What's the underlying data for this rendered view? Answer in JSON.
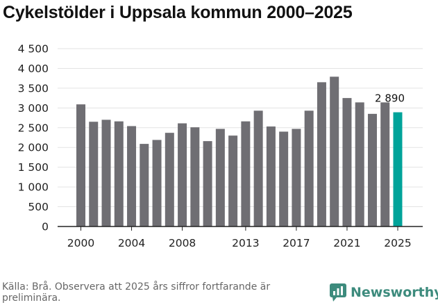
{
  "title": "Cykelstölder i Uppsala kommun 2000–2025",
  "source": "Källa: Brå. Observera att 2025 års siffror fortfarande är preliminära.",
  "brand": "Newsworthy",
  "colors": {
    "bar": "#6f6e73",
    "highlight": "#00a39a",
    "brand": "#3d8b7d"
  },
  "chart_data": {
    "type": "bar",
    "title": "Cykelstölder i Uppsala kommun 2000–2025",
    "xlabel": "",
    "ylabel": "",
    "ylim": [
      0,
      4500
    ],
    "y_ticks": [
      0,
      500,
      1000,
      1500,
      2000,
      2500,
      3000,
      3500,
      4000,
      4500
    ],
    "y_tick_labels": [
      "0",
      "500",
      "1 000",
      "1 500",
      "2 000",
      "2 500",
      "3 000",
      "3 500",
      "4 000",
      "4 500"
    ],
    "x_tick_labels": [
      2000,
      2004,
      2008,
      2013,
      2017,
      2021,
      2025
    ],
    "grid": true,
    "categories": [
      2000,
      2001,
      2002,
      2003,
      2004,
      2005,
      2006,
      2007,
      2008,
      2009,
      2010,
      2011,
      2012,
      2013,
      2014,
      2015,
      2016,
      2017,
      2018,
      2019,
      2020,
      2021,
      2022,
      2023,
      2024,
      2025
    ],
    "values": [
      3090,
      2650,
      2700,
      2660,
      2540,
      2090,
      2190,
      2370,
      2610,
      2510,
      2160,
      2470,
      2300,
      2660,
      2930,
      2530,
      2400,
      2470,
      2930,
      3650,
      3790,
      3250,
      3140,
      2850,
      3140,
      2890
    ],
    "highlight_index": 25,
    "annotation": "2 890"
  }
}
